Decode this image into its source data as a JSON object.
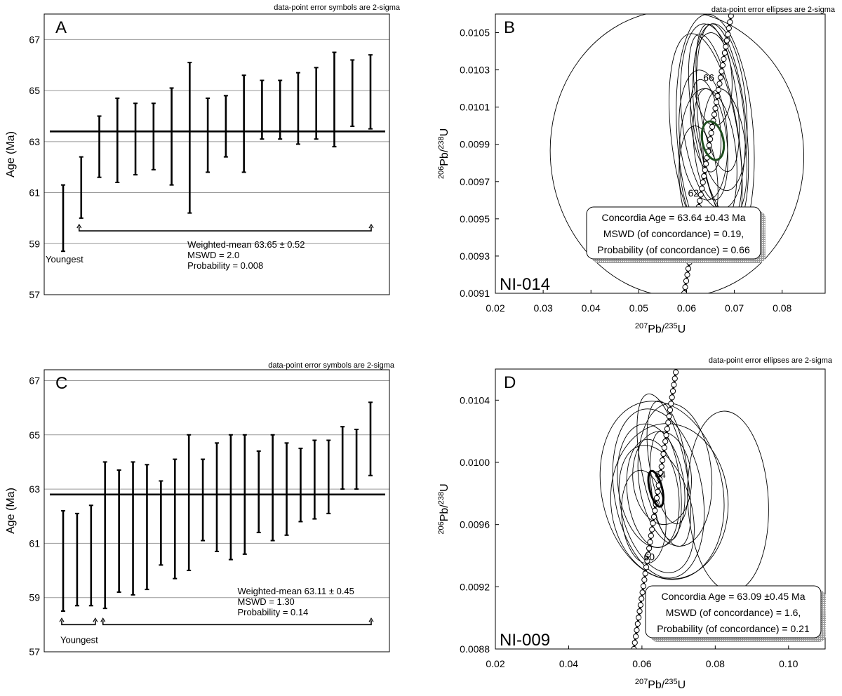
{
  "chart_data": [
    {
      "panel": "A",
      "type": "errorbar",
      "panel_label": "A",
      "note": "data-point error symbols are 2-sigma",
      "ylabel": "Age (Ma)",
      "ylim": [
        57,
        68
      ],
      "yticks": [
        57,
        59,
        61,
        63,
        65,
        67
      ],
      "errorbars": [
        [
          58.7,
          61.3
        ],
        [
          60.0,
          62.4
        ],
        [
          61.6,
          64.0
        ],
        [
          61.4,
          64.7
        ],
        [
          61.7,
          64.5
        ],
        [
          61.9,
          64.5
        ],
        [
          61.3,
          65.1
        ],
        [
          60.2,
          66.1
        ],
        [
          61.8,
          64.7
        ],
        [
          62.4,
          64.8
        ],
        [
          61.8,
          65.6
        ],
        [
          63.1,
          65.4
        ],
        [
          63.1,
          65.4
        ],
        [
          62.9,
          65.7
        ],
        [
          63.1,
          65.9
        ],
        [
          62.8,
          66.5
        ],
        [
          63.6,
          66.2
        ],
        [
          63.5,
          66.4
        ]
      ],
      "mean_line": 63.4,
      "bracket_y": 59.5,
      "youngest_count": 1,
      "youngest_label": "Youngest",
      "stats": [
        "Weighted-mean 63.65 ± 0.52",
        "MSWD = 2.0",
        "Probability = 0.008"
      ]
    },
    {
      "panel": "B",
      "type": "concordia",
      "panel_label": "B",
      "sample": "NI-014",
      "note": "data-point error ellipses are 2-sigma",
      "xlim": [
        0.02,
        0.089
      ],
      "ylim": [
        0.0091,
        0.0106
      ],
      "xticks": [
        0.02,
        0.03,
        0.04,
        0.05,
        0.06,
        0.07,
        0.08
      ],
      "xtick_labels": [
        "0.02",
        "0.03",
        "0.04",
        "0.05",
        "0.06",
        "0.07",
        "0.08"
      ],
      "yticks": [
        0.0091,
        0.0093,
        0.0095,
        0.0097,
        0.0099,
        0.0101,
        0.0103,
        0.0105
      ],
      "ytick_labels": [
        "0.0091",
        "0.0093",
        "0.0095",
        "0.0097",
        "0.0099",
        "0.0101",
        "0.0103",
        "0.0105"
      ],
      "age_labels": [
        {
          "text": "66",
          "x": 0.0635,
          "y": 0.01024
        },
        {
          "text": "62",
          "x": 0.0603,
          "y": 0.00962
        }
      ],
      "concordia": [
        [
          0.0595,
          0.0091
        ],
        [
          0.0693,
          0.01059
        ]
      ],
      "ellipses": [
        {
          "cx": 0.058,
          "cy": 0.00985,
          "rx": 0.0265,
          "ry": 0.00077,
          "rot": -5
        },
        {
          "cx": 0.066,
          "cy": 0.00995,
          "rx": 0.008,
          "ry": 0.00065,
          "rot": -4
        },
        {
          "cx": 0.064,
          "cy": 0.0099,
          "rx": 0.007,
          "ry": 0.0006,
          "rot": -8
        },
        {
          "cx": 0.0655,
          "cy": 0.01005,
          "rx": 0.0065,
          "ry": 0.0005,
          "rot": -6
        },
        {
          "cx": 0.067,
          "cy": 0.0101,
          "rx": 0.0055,
          "ry": 0.00045,
          "rot": -5
        },
        {
          "cx": 0.0645,
          "cy": 0.0098,
          "rx": 0.006,
          "ry": 0.0004,
          "rot": -3
        },
        {
          "cx": 0.066,
          "cy": 0.01,
          "rx": 0.0045,
          "ry": 0.0005,
          "rot": -10
        },
        {
          "cx": 0.0635,
          "cy": 0.00995,
          "rx": 0.005,
          "ry": 0.00035,
          "rot": -4
        },
        {
          "cx": 0.0665,
          "cy": 0.01015,
          "rx": 0.004,
          "ry": 0.0004,
          "rot": -8
        },
        {
          "cx": 0.065,
          "cy": 0.0099,
          "rx": 0.0035,
          "ry": 0.0003,
          "rot": -5
        },
        {
          "cx": 0.0675,
          "cy": 0.01,
          "rx": 0.005,
          "ry": 0.00055,
          "rot": -6
        },
        {
          "cx": 0.0625,
          "cy": 0.0097,
          "rx": 0.004,
          "ry": 0.0003,
          "rot": -4
        },
        {
          "cx": 0.0655,
          "cy": 0.01025,
          "rx": 0.004,
          "ry": 0.00025,
          "rot": -3
        },
        {
          "cx": 0.064,
          "cy": 0.01,
          "rx": 0.003,
          "ry": 0.00025,
          "rot": -7
        },
        {
          "cx": 0.068,
          "cy": 0.00985,
          "rx": 0.0045,
          "ry": 0.00035,
          "rot": -5
        }
      ],
      "mean_ellipse": {
        "cx": 0.0655,
        "cy": 0.00992,
        "rx": 0.0022,
        "ry": 0.000105,
        "rot": -12,
        "color": "#1e4d1e"
      },
      "stats": [
        "Concordia Age = 63.64 ±0.43 Ma",
        "MSWD (of concordance) = 0.19,",
        "Probability (of concordance) = 0.66"
      ]
    },
    {
      "panel": "C",
      "type": "errorbar",
      "panel_label": "C",
      "note": "data-point error symbols are 2-sigma",
      "ylabel": "Age (Ma)",
      "ylim": [
        57,
        67.4
      ],
      "yticks": [
        57,
        59,
        61,
        63,
        65,
        67
      ],
      "errorbars": [
        [
          58.5,
          62.2
        ],
        [
          58.7,
          62.1
        ],
        [
          58.7,
          62.4
        ],
        [
          58.6,
          64.0
        ],
        [
          59.2,
          63.7
        ],
        [
          59.1,
          64.0
        ],
        [
          59.3,
          63.9
        ],
        [
          60.2,
          63.3
        ],
        [
          59.7,
          64.1
        ],
        [
          60.0,
          65.0
        ],
        [
          61.1,
          64.1
        ],
        [
          60.7,
          64.7
        ],
        [
          60.4,
          65.0
        ],
        [
          60.6,
          65.0
        ],
        [
          61.4,
          64.4
        ],
        [
          61.1,
          65.0
        ],
        [
          61.3,
          64.7
        ],
        [
          61.8,
          64.5
        ],
        [
          61.9,
          64.8
        ],
        [
          62.1,
          64.8
        ],
        [
          63.0,
          65.3
        ],
        [
          63.0,
          65.2
        ],
        [
          63.5,
          66.2
        ]
      ],
      "mean_line": 62.8,
      "bracket_y": 58.0,
      "youngest_count": 3,
      "youngest_label": "Youngest",
      "stats": [
        "Weighted-mean 63.11 ± 0.45",
        "MSWD = 1.30",
        "Probability = 0.14"
      ]
    },
    {
      "panel": "D",
      "type": "concordia",
      "panel_label": "D",
      "sample": "NI-009",
      "note": "data-point error ellipses are 2-sigma",
      "xlim": [
        0.02,
        0.11
      ],
      "ylim": [
        0.0088,
        0.0106
      ],
      "xticks": [
        0.02,
        0.04,
        0.06,
        0.08,
        0.1
      ],
      "xtick_labels": [
        "0.02",
        "0.04",
        "0.06",
        "0.08",
        "0.10"
      ],
      "yticks": [
        0.0088,
        0.0092,
        0.0096,
        0.01,
        0.0104
      ],
      "ytick_labels": [
        "0.0088",
        "0.0092",
        "0.0096",
        "0.0100",
        "0.0104"
      ],
      "age_labels": [
        {
          "text": "64",
          "x": 0.0635,
          "y": 0.0099
        },
        {
          "text": "60",
          "x": 0.0605,
          "y": 0.00937
        }
      ],
      "concordia": [
        [
          0.0578,
          0.0088
        ],
        [
          0.0695,
          0.01062
        ]
      ],
      "ellipses": [
        {
          "cx": 0.0655,
          "cy": 0.00982,
          "rx": 0.0165,
          "ry": 0.00058,
          "rot": -12
        },
        {
          "cx": 0.0835,
          "cy": 0.00975,
          "rx": 0.011,
          "ry": 0.00058,
          "rot": -3
        },
        {
          "cx": 0.0675,
          "cy": 0.00975,
          "rx": 0.016,
          "ry": 0.0005,
          "rot": -4
        },
        {
          "cx": 0.0645,
          "cy": 0.0098,
          "rx": 0.012,
          "ry": 0.00055,
          "rot": -10
        },
        {
          "cx": 0.069,
          "cy": 0.00992,
          "rx": 0.01,
          "ry": 0.00046,
          "rot": -5
        },
        {
          "cx": 0.0625,
          "cy": 0.00985,
          "rx": 0.009,
          "ry": 0.0004,
          "rot": -8
        },
        {
          "cx": 0.066,
          "cy": 0.00995,
          "rx": 0.006,
          "ry": 0.0005,
          "rot": -12
        },
        {
          "cx": 0.063,
          "cy": 0.0098,
          "rx": 0.007,
          "ry": 0.00035,
          "rot": -7
        },
        {
          "cx": 0.0655,
          "cy": 0.0099,
          "rx": 0.008,
          "ry": 0.0003,
          "rot": -4
        },
        {
          "cx": 0.064,
          "cy": 0.0097,
          "rx": 0.0095,
          "ry": 0.00042,
          "rot": -15
        },
        {
          "cx": 0.067,
          "cy": 0.01,
          "rx": 0.005,
          "ry": 0.0004,
          "rot": -9
        },
        {
          "cx": 0.0605,
          "cy": 0.00965,
          "rx": 0.006,
          "ry": 0.0003,
          "rot": -5
        },
        {
          "cx": 0.0665,
          "cy": 0.00985,
          "rx": 0.004,
          "ry": 0.00035,
          "rot": -6
        }
      ],
      "mean_ellipse": {
        "cx": 0.0638,
        "cy": 0.00983,
        "rx": 0.0017,
        "ry": 0.000118,
        "rot": -14,
        "color": "#000000"
      },
      "stats": [
        "Concordia Age = 63.09 ±0.45 Ma",
        "MSWD (of concordance) = 1.6,",
        "Probability (of concordance) = 0.21"
      ]
    }
  ]
}
